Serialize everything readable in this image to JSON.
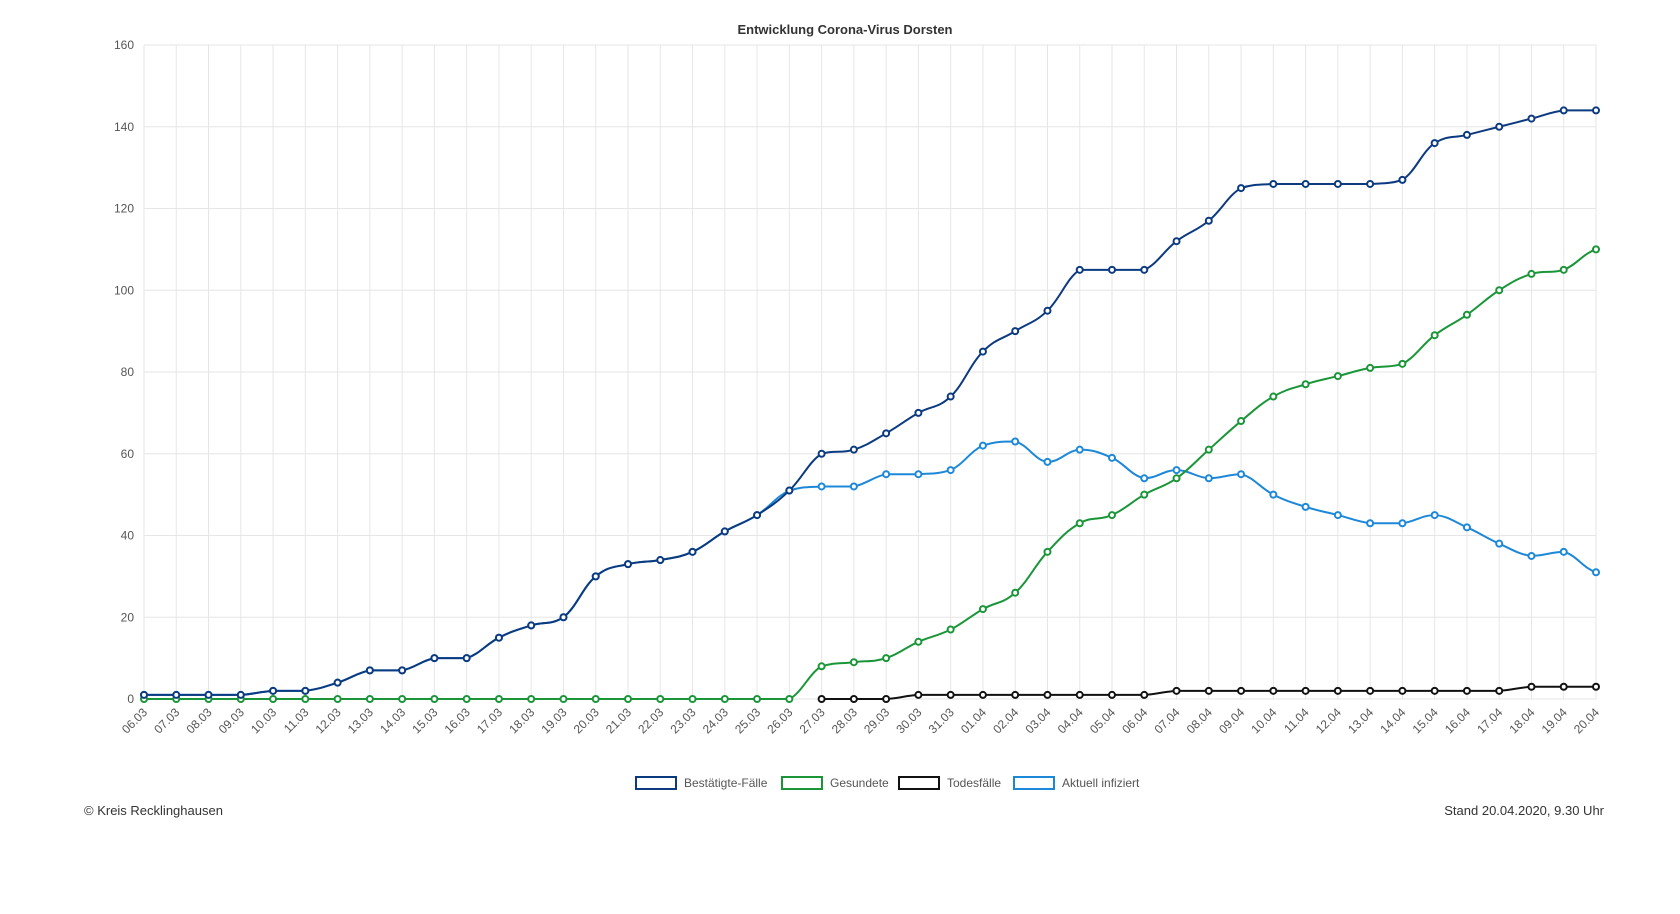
{
  "chart_data": {
    "type": "line",
    "title": "Entwicklung Corona-Virus Dorsten",
    "categories": [
      "06.03",
      "07.03",
      "08.03",
      "09.03",
      "10.03",
      "11.03",
      "12.03",
      "13.03",
      "14.03",
      "15.03",
      "16.03",
      "17.03",
      "18.03",
      "19.03",
      "20.03",
      "21.03",
      "22.03",
      "23.03",
      "24.03",
      "25.03",
      "26.03",
      "27.03",
      "28.03",
      "29.03",
      "30.03",
      "31.03",
      "01.04",
      "02.04",
      "03.04",
      "04.04",
      "05.04",
      "06.04",
      "07.04",
      "08.04",
      "09.04",
      "10.04",
      "11.04",
      "12.04",
      "13.04",
      "14.04",
      "15.04",
      "16.04",
      "17.04",
      "18.04",
      "19.04",
      "20.04"
    ],
    "series": [
      {
        "name": "Bestätigte-Fälle",
        "color": "#0b3a80",
        "values": [
          1,
          1,
          1,
          1,
          2,
          2,
          4,
          7,
          7,
          10,
          10,
          15,
          18,
          20,
          30,
          33,
          34,
          36,
          41,
          45,
          51,
          60,
          61,
          65,
          70,
          74,
          85,
          90,
          95,
          105,
          105,
          105,
          112,
          117,
          125,
          126,
          126,
          126,
          126,
          127,
          136,
          138,
          140,
          142,
          144,
          144
        ]
      },
      {
        "name": "Gesundete",
        "color": "#1a9639",
        "values": [
          0,
          0,
          0,
          0,
          0,
          0,
          0,
          0,
          0,
          0,
          0,
          0,
          0,
          0,
          0,
          0,
          0,
          0,
          0,
          0,
          0,
          8,
          9,
          10,
          14,
          17,
          22,
          26,
          36,
          43,
          45,
          50,
          54,
          61,
          68,
          74,
          77,
          79,
          81,
          82,
          89,
          94,
          100,
          104,
          105,
          110
        ]
      },
      {
        "name": "Todesfälle",
        "color": "#111111",
        "values": [
          null,
          null,
          null,
          null,
          null,
          null,
          null,
          null,
          null,
          null,
          null,
          null,
          null,
          null,
          null,
          null,
          null,
          null,
          null,
          null,
          null,
          0,
          0,
          0,
          1,
          1,
          1,
          1,
          1,
          1,
          1,
          1,
          2,
          2,
          2,
          2,
          2,
          2,
          2,
          2,
          2,
          2,
          2,
          3,
          3,
          3
        ]
      },
      {
        "name": "Aktuell infiziert",
        "color": "#1e88d8",
        "values": [
          1,
          1,
          1,
          1,
          2,
          2,
          4,
          7,
          7,
          10,
          10,
          15,
          18,
          20,
          30,
          33,
          34,
          36,
          41,
          45,
          51,
          52,
          52,
          55,
          55,
          56,
          62,
          63,
          58,
          61,
          59,
          54,
          56,
          54,
          55,
          50,
          47,
          45,
          43,
          43,
          45,
          42,
          38,
          35,
          36,
          31
        ]
      }
    ],
    "ylim": [
      0,
      160
    ],
    "yticks": [
      0,
      20,
      40,
      60,
      80,
      100,
      120,
      140,
      160
    ],
    "grid": true,
    "legend": "bottom",
    "source": "© Kreis Recklinghausen",
    "note": "Stand 20.04.2020, 9.30 Uhr"
  }
}
